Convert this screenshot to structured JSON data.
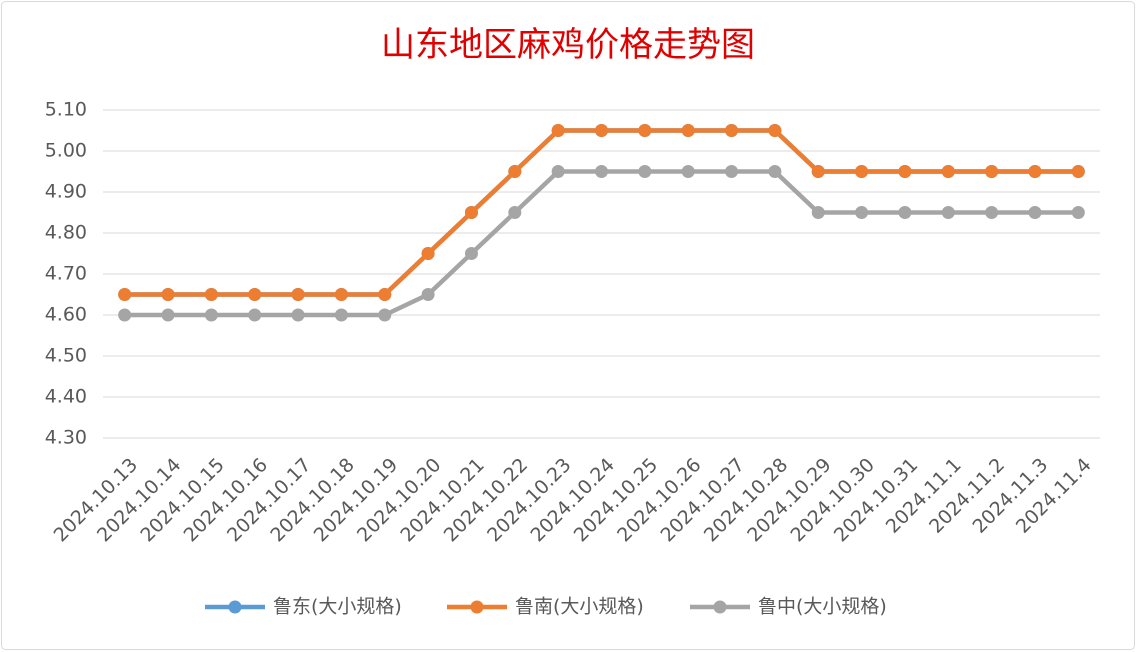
{
  "chart_data": {
    "type": "line",
    "title": "山东地区麻鸡价格走势图",
    "categories": [
      "2024.10.13",
      "2024.10.14",
      "2024.10.15",
      "2024.10.16",
      "2024.10.17",
      "2024.10.18",
      "2024.10.19",
      "2024.10.20",
      "2024.10.21",
      "2024.10.22",
      "2024.10.23",
      "2024.10.24",
      "2024.10.25",
      "2024.10.26",
      "2024.10.27",
      "2024.10.28",
      "2024.10.29",
      "2024.10.30",
      "2024.10.31",
      "2024.11.1",
      "2024.11.2",
      "2024.11.3",
      "2024.11.4"
    ],
    "series": [
      {
        "name": "鲁东(大小规格)",
        "color": "#5b9bd5",
        "values": [
          4.65,
          4.65,
          4.65,
          4.65,
          4.65,
          4.65,
          4.65,
          4.75,
          4.85,
          4.95,
          5.05,
          5.05,
          5.05,
          5.05,
          5.05,
          5.05,
          4.95,
          4.95,
          4.95,
          4.95,
          4.95,
          4.95,
          4.95
        ]
      },
      {
        "name": "鲁南(大小规格)",
        "color": "#ed7d31",
        "values": [
          4.65,
          4.65,
          4.65,
          4.65,
          4.65,
          4.65,
          4.65,
          4.75,
          4.85,
          4.95,
          5.05,
          5.05,
          5.05,
          5.05,
          5.05,
          5.05,
          4.95,
          4.95,
          4.95,
          4.95,
          4.95,
          4.95,
          4.95
        ]
      },
      {
        "name": "鲁中(大小规格)",
        "color": "#a5a5a5",
        "values": [
          4.6,
          4.6,
          4.6,
          4.6,
          4.6,
          4.6,
          4.6,
          4.65,
          4.75,
          4.85,
          4.95,
          4.95,
          4.95,
          4.95,
          4.95,
          4.95,
          4.85,
          4.85,
          4.85,
          4.85,
          4.85,
          4.85,
          4.85
        ]
      }
    ],
    "ylim": [
      4.3,
      5.1
    ],
    "yticks": [
      {
        "value": 4.3,
        "label": "4.30"
      },
      {
        "value": 4.4,
        "label": "4.40"
      },
      {
        "value": 4.5,
        "label": "4.50"
      },
      {
        "value": 4.6,
        "label": "4.60"
      },
      {
        "value": 4.7,
        "label": "4.70"
      },
      {
        "value": 4.8,
        "label": "4.80"
      },
      {
        "value": 4.9,
        "label": "4.90"
      },
      {
        "value": 5.0,
        "label": "5.00"
      },
      {
        "value": 5.1,
        "label": "5.10"
      }
    ],
    "grid": true,
    "legend": "bottom"
  }
}
